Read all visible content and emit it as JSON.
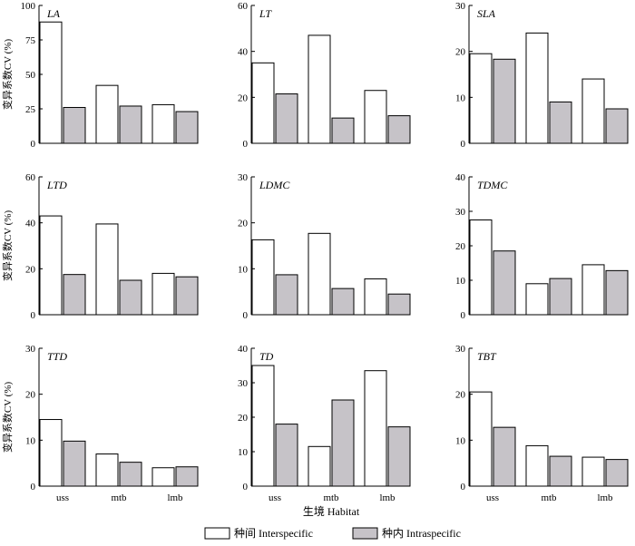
{
  "figure": {
    "y_axis_label": "变异系数CV (%)",
    "x_axis_label": "生境 Habitat",
    "legend": [
      {
        "label": "种间 Interspecific",
        "color": "#ffffff"
      },
      {
        "label": "种内 Intraspecific",
        "color": "#c6c3c8"
      }
    ]
  },
  "chart_data": [
    {
      "type": "bar",
      "title": "LA",
      "categories": [
        "uss",
        "mtb",
        "lmb"
      ],
      "series": [
        {
          "name": "种间 Interspecific",
          "values": [
            88,
            42,
            28
          ]
        },
        {
          "name": "种内 Intraspecific",
          "values": [
            26,
            27,
            23
          ]
        }
      ],
      "ylim": [
        0,
        100
      ],
      "yticks": [
        0,
        25,
        50,
        75,
        100
      ]
    },
    {
      "type": "bar",
      "title": "LT",
      "categories": [
        "uss",
        "mtb",
        "lmb"
      ],
      "series": [
        {
          "name": "种间 Interspecific",
          "values": [
            35,
            47,
            23
          ]
        },
        {
          "name": "种内 Intraspecific",
          "values": [
            21.5,
            11,
            12
          ]
        }
      ],
      "ylim": [
        0,
        60
      ],
      "yticks": [
        0,
        20,
        40,
        60
      ]
    },
    {
      "type": "bar",
      "title": "SLA",
      "categories": [
        "uss",
        "mtb",
        "lmb"
      ],
      "series": [
        {
          "name": "种间 Interspecific",
          "values": [
            19.5,
            24,
            14
          ]
        },
        {
          "name": "种内 Intraspecific",
          "values": [
            18.3,
            9,
            7.5
          ]
        }
      ],
      "ylim": [
        0,
        30
      ],
      "yticks": [
        0,
        10,
        20,
        30
      ]
    },
    {
      "type": "bar",
      "title": "LTD",
      "categories": [
        "uss",
        "mtb",
        "lmb"
      ],
      "series": [
        {
          "name": "种间 Interspecific",
          "values": [
            43,
            39.5,
            18
          ]
        },
        {
          "name": "种内 Intraspecific",
          "values": [
            17.5,
            15,
            16.5
          ]
        }
      ],
      "ylim": [
        0,
        60
      ],
      "yticks": [
        0,
        20,
        40,
        60
      ]
    },
    {
      "type": "bar",
      "title": "LDMC",
      "categories": [
        "uss",
        "mtb",
        "lmb"
      ],
      "series": [
        {
          "name": "种间 Interspecific",
          "values": [
            16.3,
            17.7,
            7.8
          ]
        },
        {
          "name": "种内 Intraspecific",
          "values": [
            8.7,
            5.7,
            4.5
          ]
        }
      ],
      "ylim": [
        0,
        30
      ],
      "yticks": [
        0,
        10,
        20,
        30
      ]
    },
    {
      "type": "bar",
      "title": "TDMC",
      "categories": [
        "uss",
        "mtb",
        "lmb"
      ],
      "series": [
        {
          "name": "种间 Interspecific",
          "values": [
            27.5,
            9,
            14.5
          ]
        },
        {
          "name": "种内 Intraspecific",
          "values": [
            18.5,
            10.5,
            12.8
          ]
        }
      ],
      "ylim": [
        0,
        40
      ],
      "yticks": [
        0,
        10,
        20,
        30,
        40
      ]
    },
    {
      "type": "bar",
      "title": "TTD",
      "categories": [
        "uss",
        "mtb",
        "lmb"
      ],
      "series": [
        {
          "name": "种间 Interspecific",
          "values": [
            14.5,
            7,
            4
          ]
        },
        {
          "name": "种内 Intraspecific",
          "values": [
            9.8,
            5.2,
            4.2
          ]
        }
      ],
      "ylim": [
        0,
        30
      ],
      "yticks": [
        0,
        10,
        20,
        30
      ]
    },
    {
      "type": "bar",
      "title": "TD",
      "categories": [
        "uss",
        "mtb",
        "lmb"
      ],
      "series": [
        {
          "name": "种间 Interspecific",
          "values": [
            35,
            11.5,
            33.5
          ]
        },
        {
          "name": "种内 Intraspecific",
          "values": [
            18,
            25,
            17.2
          ]
        }
      ],
      "ylim": [
        0,
        40
      ],
      "yticks": [
        0,
        10,
        20,
        30,
        40
      ]
    },
    {
      "type": "bar",
      "title": "TBT",
      "categories": [
        "uss",
        "mtb",
        "lmb"
      ],
      "series": [
        {
          "name": "种间 Interspecific",
          "values": [
            20.5,
            8.8,
            6.3
          ]
        },
        {
          "name": "种内 Intraspecific",
          "values": [
            12.8,
            6.5,
            5.8
          ]
        }
      ],
      "ylim": [
        0,
        30
      ],
      "yticks": [
        0,
        10,
        20,
        30
      ]
    }
  ]
}
